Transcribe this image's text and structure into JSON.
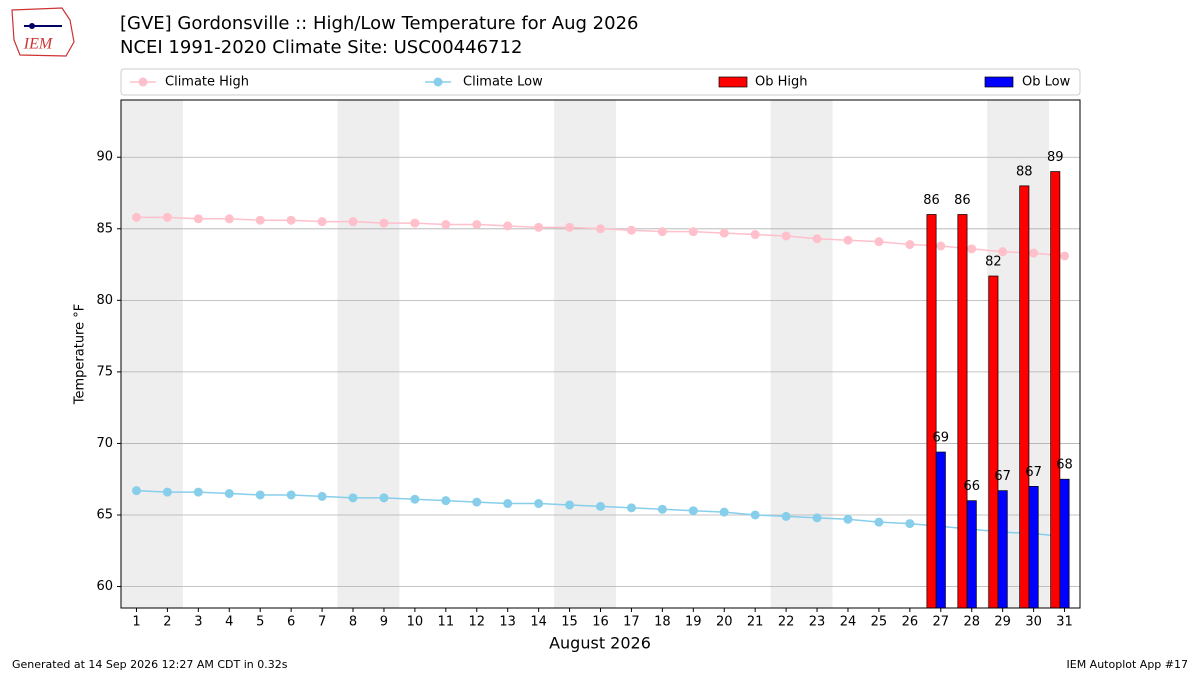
{
  "chart_data": {
    "type": "bar_line",
    "title": "[GVE] Gordonsville :: High/Low Temperature for Aug 2026",
    "subtitle": "NCEI 1991-2020 Climate Site: USC00446712",
    "xlabel": "August 2026",
    "ylabel": "Temperature °F",
    "footer_left": "Generated at 14 Sep 2026 12:27 AM CDT in 0.32s",
    "footer_right": "IEM Autoplot App #17",
    "logo": "IEM",
    "x": [
      1,
      2,
      3,
      4,
      5,
      6,
      7,
      8,
      9,
      10,
      11,
      12,
      13,
      14,
      15,
      16,
      17,
      18,
      19,
      20,
      21,
      22,
      23,
      24,
      25,
      26,
      27,
      28,
      29,
      30,
      31
    ],
    "xlim": [
      0.5,
      31.5
    ],
    "xticks": [
      1,
      2,
      3,
      4,
      5,
      6,
      7,
      8,
      9,
      10,
      11,
      12,
      13,
      14,
      15,
      16,
      17,
      18,
      19,
      20,
      21,
      22,
      23,
      24,
      25,
      26,
      27,
      28,
      29,
      30,
      31
    ],
    "ylim": [
      58.5,
      94
    ],
    "yticks": [
      60,
      65,
      70,
      75,
      80,
      85,
      90
    ],
    "grid": true,
    "shaded_days": [
      1,
      2,
      8,
      9,
      15,
      16,
      22,
      23,
      29,
      30
    ],
    "series": [
      {
        "name": "Climate High",
        "kind": "line",
        "color": "#ffc0cb",
        "values": [
          85.8,
          85.8,
          85.7,
          85.7,
          85.6,
          85.6,
          85.5,
          85.5,
          85.4,
          85.4,
          85.3,
          85.3,
          85.2,
          85.1,
          85.1,
          85.0,
          84.9,
          84.8,
          84.8,
          84.7,
          84.6,
          84.5,
          84.3,
          84.2,
          84.1,
          83.9,
          83.8,
          83.6,
          83.4,
          83.3,
          83.1
        ]
      },
      {
        "name": "Climate Low",
        "kind": "line",
        "color": "#87ceeb",
        "values": [
          66.7,
          66.6,
          66.6,
          66.5,
          66.4,
          66.4,
          66.3,
          66.2,
          66.2,
          66.1,
          66.0,
          65.9,
          65.8,
          65.8,
          65.7,
          65.6,
          65.5,
          65.4,
          65.3,
          65.2,
          65.0,
          64.9,
          64.8,
          64.7,
          64.5,
          64.4,
          64.2,
          64.0,
          63.8,
          63.7,
          63.5
        ]
      },
      {
        "name": "Ob High",
        "kind": "bar",
        "color": "#ff0000",
        "values": [
          null,
          null,
          null,
          null,
          null,
          null,
          null,
          null,
          null,
          null,
          null,
          null,
          null,
          null,
          null,
          null,
          null,
          null,
          null,
          null,
          null,
          null,
          null,
          null,
          null,
          null,
          86,
          86,
          81.7,
          88,
          89
        ],
        "value_labels": [
          null,
          null,
          null,
          null,
          null,
          null,
          null,
          null,
          null,
          null,
          null,
          null,
          null,
          null,
          null,
          null,
          null,
          null,
          null,
          null,
          null,
          null,
          null,
          null,
          null,
          null,
          "86",
          "86",
          "82",
          "88",
          "89"
        ]
      },
      {
        "name": "Ob Low",
        "kind": "bar",
        "color": "#0000ff",
        "values": [
          null,
          null,
          null,
          null,
          null,
          null,
          null,
          null,
          null,
          null,
          null,
          null,
          null,
          null,
          null,
          null,
          null,
          null,
          null,
          null,
          null,
          null,
          null,
          null,
          null,
          null,
          69.4,
          66,
          66.7,
          67,
          67.5
        ],
        "value_labels": [
          null,
          null,
          null,
          null,
          null,
          null,
          null,
          null,
          null,
          null,
          null,
          null,
          null,
          null,
          null,
          null,
          null,
          null,
          null,
          null,
          null,
          null,
          null,
          null,
          null,
          null,
          "69",
          "66",
          "67",
          "67",
          "68"
        ]
      }
    ]
  }
}
